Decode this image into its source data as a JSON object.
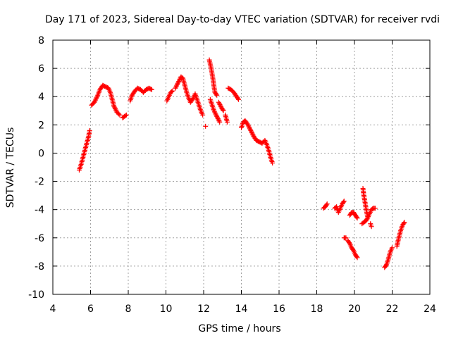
{
  "chart_data": {
    "type": "scatter",
    "title": "Day 171 of 2023, Sidereal Day-to-day VTEC variation (SDTVAR) for receiver rvdi",
    "xlabel": "GPS time / hours",
    "ylabel": "SDTVAR / TECUs",
    "xlim": [
      4,
      24
    ],
    "ylim": [
      -10,
      8
    ],
    "xticks": [
      4,
      6,
      8,
      10,
      12,
      14,
      16,
      18,
      20,
      22,
      24
    ],
    "yticks": [
      -10,
      -8,
      -6,
      -4,
      -2,
      0,
      2,
      4,
      6,
      8
    ],
    "xtick_labels": [
      "4",
      "6",
      "8",
      "10",
      "12",
      "14",
      "16",
      "18",
      "20",
      "22",
      "24"
    ],
    "ytick_labels": [
      "-10",
      "-8",
      "-6",
      "-4",
      "-2",
      "0",
      "2",
      "4",
      "6",
      "8"
    ],
    "grid": true,
    "marker": "+",
    "marker_color": "#ff0000",
    "series": [
      {
        "name": "rvdi",
        "segments": [
          [
            [
              5.4,
              -1.2
            ],
            [
              5.5,
              -0.8
            ],
            [
              5.6,
              -0.3
            ],
            [
              5.7,
              0.2
            ],
            [
              5.8,
              0.7
            ],
            [
              5.9,
              1.2
            ],
            [
              5.95,
              1.6
            ]
          ],
          [
            [
              6.05,
              3.4
            ],
            [
              6.2,
              3.6
            ],
            [
              6.35,
              4.0
            ],
            [
              6.5,
              4.5
            ],
            [
              6.65,
              4.8
            ],
            [
              6.8,
              4.7
            ],
            [
              6.95,
              4.6
            ],
            [
              7.05,
              4.3
            ],
            [
              7.15,
              3.8
            ],
            [
              7.25,
              3.3
            ],
            [
              7.4,
              2.9
            ],
            [
              7.55,
              2.7
            ]
          ],
          [
            [
              7.7,
              2.5
            ],
            [
              7.8,
              2.6
            ],
            [
              7.9,
              2.7
            ]
          ],
          [
            [
              8.1,
              3.7
            ],
            [
              8.2,
              4.1
            ],
            [
              8.35,
              4.4
            ],
            [
              8.5,
              4.6
            ],
            [
              8.65,
              4.5
            ],
            [
              8.8,
              4.3
            ],
            [
              8.95,
              4.5
            ],
            [
              9.1,
              4.6
            ],
            [
              9.25,
              4.5
            ]
          ],
          [
            [
              10.05,
              3.7
            ],
            [
              10.15,
              4.0
            ],
            [
              10.25,
              4.3
            ],
            [
              10.35,
              4.4
            ]
          ],
          [
            [
              10.5,
              4.6
            ],
            [
              10.65,
              5.0
            ],
            [
              10.8,
              5.4
            ],
            [
              10.9,
              5.3
            ],
            [
              11.0,
              4.8
            ],
            [
              11.1,
              4.3
            ],
            [
              11.2,
              3.9
            ],
            [
              11.3,
              3.6
            ],
            [
              11.45,
              3.9
            ],
            [
              11.55,
              4.2
            ],
            [
              11.65,
              3.8
            ],
            [
              11.75,
              3.4
            ],
            [
              11.85,
              3.0
            ],
            [
              11.95,
              2.7
            ]
          ],
          [
            [
              12.1,
              1.9
            ]
          ],
          [
            [
              12.3,
              6.6
            ],
            [
              12.4,
              6.0
            ],
            [
              12.5,
              5.2
            ],
            [
              12.55,
              4.7
            ],
            [
              12.6,
              4.3
            ],
            [
              12.7,
              4.1
            ]
          ],
          [
            [
              12.35,
              3.8
            ],
            [
              12.45,
              3.4
            ],
            [
              12.55,
              3.0
            ],
            [
              12.7,
              2.6
            ],
            [
              12.85,
              2.2
            ]
          ],
          [
            [
              12.8,
              3.6
            ],
            [
              12.95,
              3.2
            ],
            [
              13.05,
              3.0
            ]
          ],
          [
            [
              13.15,
              2.7
            ],
            [
              13.25,
              2.2
            ]
          ],
          [
            [
              13.3,
              4.6
            ],
            [
              13.45,
              4.5
            ],
            [
              13.6,
              4.3
            ],
            [
              13.75,
              4.0
            ],
            [
              13.85,
              3.8
            ]
          ],
          [
            [
              14.0,
              1.8
            ],
            [
              14.1,
              2.2
            ],
            [
              14.2,
              2.3
            ],
            [
              14.35,
              2.0
            ],
            [
              14.5,
              1.6
            ],
            [
              14.65,
              1.2
            ],
            [
              14.8,
              0.9
            ],
            [
              14.95,
              0.8
            ],
            [
              15.1,
              0.7
            ],
            [
              15.25,
              0.9
            ],
            [
              15.35,
              0.6
            ],
            [
              15.45,
              0.2
            ],
            [
              15.55,
              -0.3
            ],
            [
              15.65,
              -0.7
            ]
          ],
          [
            [
              18.35,
              -3.9
            ],
            [
              18.45,
              -3.8
            ],
            [
              18.55,
              -3.6
            ]
          ],
          [
            [
              18.95,
              -3.9
            ],
            [
              19.05,
              -3.8
            ],
            [
              19.15,
              -4.2
            ],
            [
              19.25,
              -3.9
            ],
            [
              19.35,
              -3.6
            ],
            [
              19.45,
              -3.4
            ]
          ],
          [
            [
              19.45,
              -6.0
            ],
            [
              19.55,
              -6.0
            ]
          ],
          [
            [
              19.65,
              -6.2
            ],
            [
              19.75,
              -6.4
            ],
            [
              19.85,
              -6.7
            ],
            [
              19.95,
              -6.9
            ],
            [
              20.05,
              -7.2
            ],
            [
              20.15,
              -7.4
            ]
          ],
          [
            [
              19.75,
              -4.4
            ],
            [
              19.85,
              -4.2
            ],
            [
              19.95,
              -4.2
            ],
            [
              20.05,
              -4.4
            ],
            [
              20.15,
              -4.6
            ]
          ],
          [
            [
              20.45,
              -2.5
            ],
            [
              20.5,
              -3.0
            ],
            [
              20.55,
              -3.4
            ],
            [
              20.6,
              -3.8
            ],
            [
              20.65,
              -4.2
            ],
            [
              20.7,
              -4.5
            ]
          ],
          [
            [
              20.4,
              -5.0
            ],
            [
              20.5,
              -4.9
            ],
            [
              20.6,
              -4.8
            ],
            [
              20.7,
              -4.6
            ],
            [
              20.8,
              -4.3
            ],
            [
              20.9,
              -4.0
            ],
            [
              21.0,
              -3.9
            ],
            [
              21.1,
              -3.9
            ]
          ],
          [
            [
              20.85,
              -5.0
            ],
            [
              20.9,
              -5.2
            ]
          ],
          [
            [
              21.6,
              -8.1
            ],
            [
              21.7,
              -7.9
            ],
            [
              21.8,
              -7.5
            ],
            [
              21.9,
              -7.0
            ],
            [
              22.0,
              -6.7
            ]
          ],
          [
            [
              22.25,
              -6.6
            ],
            [
              22.35,
              -6.0
            ],
            [
              22.45,
              -5.5
            ],
            [
              22.55,
              -5.1
            ],
            [
              22.65,
              -4.9
            ]
          ]
        ]
      }
    ]
  }
}
